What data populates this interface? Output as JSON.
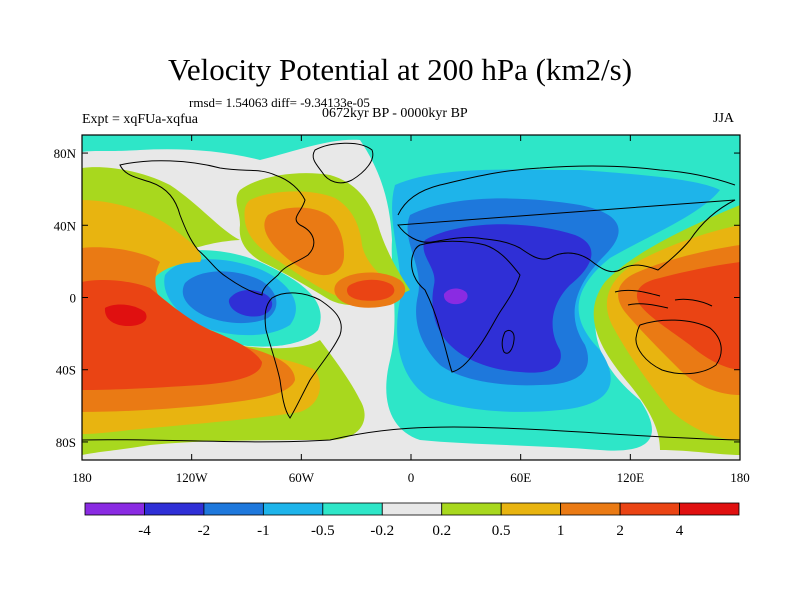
{
  "header": {
    "title": "Velocity Potential at 200 hPa (km2/s)",
    "stats": "rmsd= 1.54063 diff= -9.34133e-05",
    "experiment": "Expt = xqFUa-xqfua",
    "period": "0672kyr BP - 0000kyr BP",
    "season": "JJA"
  },
  "map": {
    "projection": "cylindrical-equidistant",
    "lon_range": [
      -180,
      180
    ],
    "lat_range": [
      -90,
      90
    ],
    "x_ticks": [
      {
        "lon": -180,
        "label": "180"
      },
      {
        "lon": -120,
        "label": "120W"
      },
      {
        "lon": -60,
        "label": "60W"
      },
      {
        "lon": 0,
        "label": "0"
      },
      {
        "lon": 60,
        "label": "60E"
      },
      {
        "lon": 120,
        "label": "120E"
      },
      {
        "lon": 180,
        "label": "180"
      }
    ],
    "y_ticks": [
      {
        "lat": 80,
        "label": "80N"
      },
      {
        "lat": 40,
        "label": "40N"
      },
      {
        "lat": 0,
        "label": "0"
      },
      {
        "lat": -40,
        "label": "40S"
      },
      {
        "lat": -80,
        "label": "80S"
      }
    ]
  },
  "colorbar": {
    "colors": [
      "#8a2be2",
      "#2f2fd6",
      "#1e78dc",
      "#1eb4ea",
      "#2ee6c8",
      "#e8e8e8",
      "#a8d81e",
      "#e8b410",
      "#ea7a14",
      "#ea4414",
      "#e01010"
    ],
    "labels": [
      "-4",
      "-2",
      "-1",
      "-0.5",
      "-0.2",
      "0.2",
      "0.5",
      "1",
      "2",
      "4"
    ]
  }
}
